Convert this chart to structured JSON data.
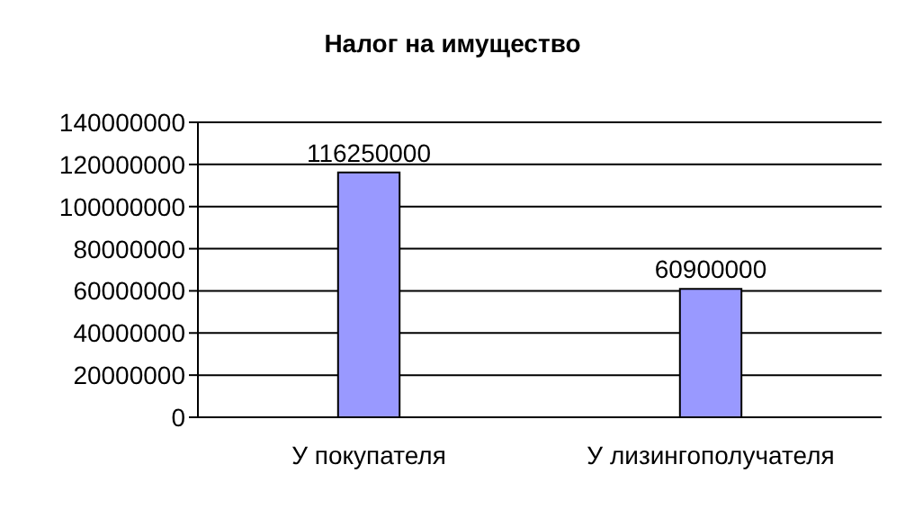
{
  "chart_data": {
    "type": "bar",
    "title": "Налог на имущество",
    "categories": [
      "У покупателя",
      "У лизингополучателя"
    ],
    "values": [
      116250000,
      60900000
    ],
    "color": "#9999ff",
    "ylim": [
      0,
      140000000
    ],
    "yticks": [
      0,
      20000000,
      40000000,
      60000000,
      80000000,
      100000000,
      120000000,
      140000000
    ],
    "grid": "y",
    "data_labels": true,
    "legend": false
  }
}
